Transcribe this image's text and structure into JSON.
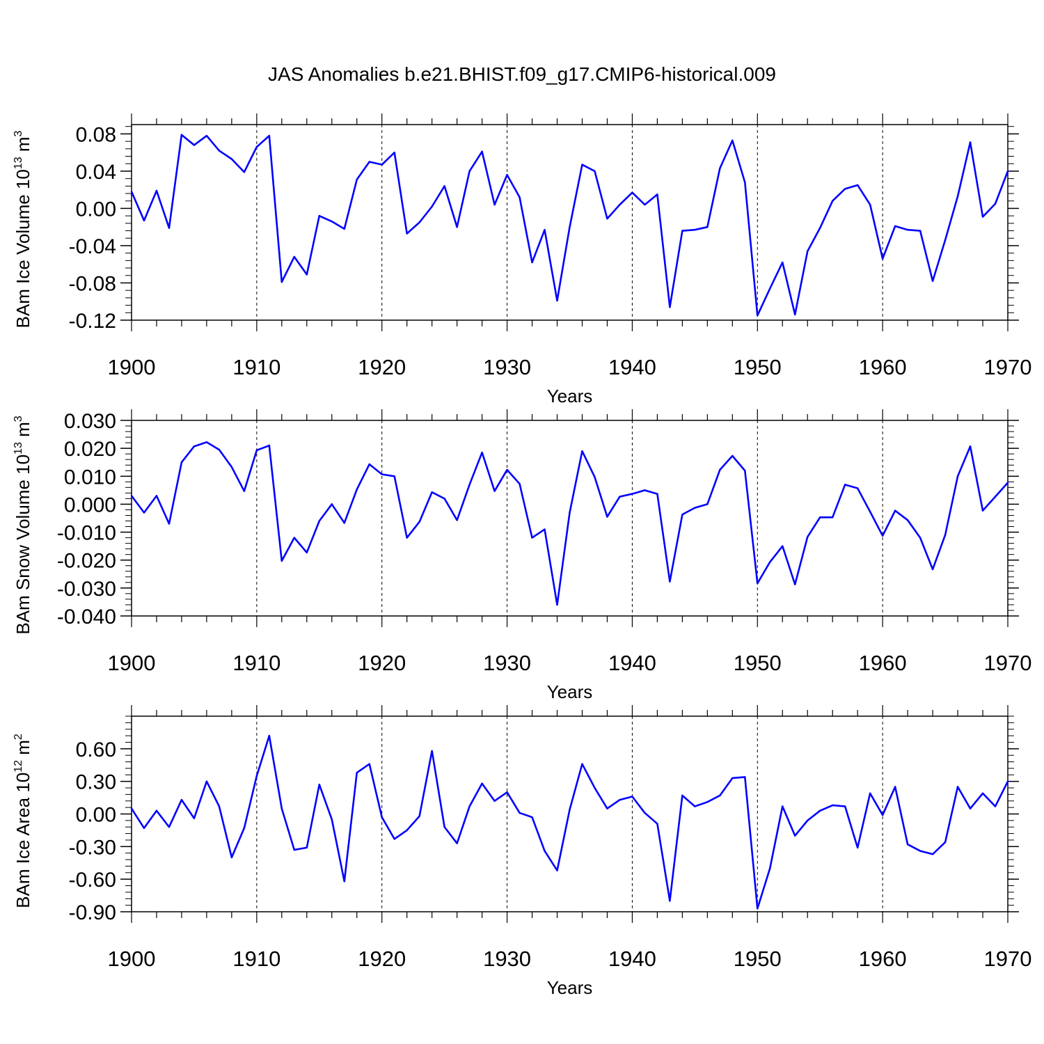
{
  "title": "JAS Anomalies b.e21.BHIST.f09_g17.CMIP6-historical.009",
  "colors": {
    "line": "#0000ff",
    "axis": "#000000",
    "grid": "#000000"
  },
  "chart_data": [
    {
      "type": "line",
      "name": "ice-volume",
      "ylabel_main": "BAm Ice Volume 10",
      "ylabel_exp": "13",
      "ylabel_unit": " m",
      "ylabel_unit_exp": "3",
      "xlabel": "Years",
      "xlim": [
        1900,
        1970
      ],
      "ylim": [
        -0.12,
        0.09
      ],
      "x_ticks": [
        "1900",
        "1910",
        "1920",
        "1930",
        "1940",
        "1950",
        "1960",
        "1970"
      ],
      "y_ticks": [
        -0.12,
        -0.08,
        -0.04,
        0.0,
        0.04,
        0.08
      ],
      "y_tick_labels": [
        "-0.12",
        "-0.08",
        "-0.04",
        "0.00",
        "0.04",
        "0.08"
      ],
      "y_minor_step": 0.008,
      "x": [
        1900,
        1901,
        1902,
        1903,
        1904,
        1905,
        1906,
        1907,
        1908,
        1909,
        1910,
        1911,
        1912,
        1913,
        1914,
        1915,
        1916,
        1917,
        1918,
        1919,
        1920,
        1921,
        1922,
        1923,
        1924,
        1925,
        1926,
        1927,
        1928,
        1929,
        1930,
        1931,
        1932,
        1933,
        1934,
        1935,
        1936,
        1937,
        1938,
        1939,
        1940,
        1941,
        1942,
        1943,
        1944,
        1945,
        1946,
        1947,
        1948,
        1949,
        1950,
        1951,
        1952,
        1953,
        1954,
        1955,
        1956,
        1957,
        1958,
        1959,
        1960,
        1961,
        1962,
        1963,
        1964,
        1965,
        1966,
        1967,
        1968,
        1969,
        1970
      ],
      "values": [
        0.018,
        -0.013,
        0.019,
        -0.021,
        0.079,
        0.068,
        0.078,
        0.062,
        0.053,
        0.039,
        0.066,
        0.078,
        -0.079,
        -0.052,
        -0.071,
        -0.008,
        -0.014,
        -0.022,
        0.031,
        0.05,
        0.047,
        0.06,
        -0.027,
        -0.015,
        0.002,
        0.024,
        -0.02,
        0.04,
        0.061,
        0.004,
        0.036,
        0.012,
        -0.058,
        -0.023,
        -0.099,
        -0.02,
        0.047,
        0.04,
        -0.011,
        0.004,
        0.017,
        0.004,
        0.015,
        -0.106,
        -0.024,
        -0.023,
        -0.02,
        0.043,
        0.073,
        0.028,
        -0.115,
        -0.086,
        -0.058,
        -0.114,
        -0.046,
        -0.021,
        0.008,
        0.021,
        0.025,
        0.004,
        -0.054,
        -0.019,
        -0.023,
        -0.024,
        -0.078,
        -0.034,
        0.013,
        0.071,
        -0.009,
        0.005,
        0.04
      ]
    },
    {
      "type": "line",
      "name": "snow-volume",
      "ylabel_main": "BAm Snow Volume 10",
      "ylabel_exp": "13",
      "ylabel_unit": " m",
      "ylabel_unit_exp": "3",
      "xlabel": "Years",
      "xlim": [
        1900,
        1970
      ],
      "ylim": [
        -0.04,
        0.03
      ],
      "x_ticks": [
        "1900",
        "1910",
        "1920",
        "1930",
        "1940",
        "1950",
        "1960",
        "1970"
      ],
      "y_ticks": [
        -0.04,
        -0.03,
        -0.02,
        -0.01,
        0.0,
        0.01,
        0.02,
        0.03
      ],
      "y_tick_labels": [
        "-0.040",
        "-0.030",
        "-0.020",
        "-0.010",
        "0.000",
        "0.010",
        "0.020",
        "0.030"
      ],
      "y_minor_step": 0.002,
      "x": [
        1900,
        1901,
        1902,
        1903,
        1904,
        1905,
        1906,
        1907,
        1908,
        1909,
        1910,
        1911,
        1912,
        1913,
        1914,
        1915,
        1916,
        1917,
        1918,
        1919,
        1920,
        1921,
        1922,
        1923,
        1924,
        1925,
        1926,
        1927,
        1928,
        1929,
        1930,
        1931,
        1932,
        1933,
        1934,
        1935,
        1936,
        1937,
        1938,
        1939,
        1940,
        1941,
        1942,
        1943,
        1944,
        1945,
        1946,
        1947,
        1948,
        1949,
        1950,
        1951,
        1952,
        1953,
        1954,
        1955,
        1956,
        1957,
        1958,
        1959,
        1960,
        1961,
        1962,
        1963,
        1964,
        1965,
        1966,
        1967,
        1968,
        1969,
        1970
      ],
      "values": [
        0.003,
        -0.003,
        0.003,
        -0.007,
        0.015,
        0.0207,
        0.0222,
        0.0195,
        0.0133,
        0.0047,
        0.0193,
        0.021,
        -0.0203,
        -0.012,
        -0.0173,
        -0.006,
        0.0,
        -0.0067,
        0.0053,
        0.0143,
        0.0107,
        0.01,
        -0.012,
        -0.0063,
        0.0043,
        0.002,
        -0.0057,
        0.007,
        0.0185,
        0.0047,
        0.0123,
        0.0073,
        -0.012,
        -0.009,
        -0.036,
        -0.003,
        0.019,
        0.0097,
        -0.0045,
        0.0027,
        0.0037,
        0.005,
        0.0037,
        -0.0277,
        -0.0037,
        -0.0013,
        0.0,
        0.0123,
        0.0173,
        0.012,
        -0.0283,
        -0.0207,
        -0.015,
        -0.0287,
        -0.0117,
        -0.0047,
        -0.0047,
        0.007,
        0.0057,
        -0.0027,
        -0.0113,
        -0.0023,
        -0.0057,
        -0.012,
        -0.0233,
        -0.011,
        0.01,
        0.0207,
        -0.0023,
        0.0027,
        0.0077
      ]
    },
    {
      "type": "line",
      "name": "ice-area",
      "ylabel_main": "BAm Ice Area 10",
      "ylabel_exp": "12",
      "ylabel_unit": " m",
      "ylabel_unit_exp": "2",
      "xlabel": "Years",
      "xlim": [
        1900,
        1970
      ],
      "ylim": [
        -0.9,
        0.9
      ],
      "x_ticks": [
        "1900",
        "1910",
        "1920",
        "1930",
        "1940",
        "1950",
        "1960",
        "1970"
      ],
      "y_ticks": [
        -0.9,
        -0.6,
        -0.3,
        0.0,
        0.3,
        0.6
      ],
      "y_tick_labels": [
        "-0.90",
        "-0.60",
        "-0.30",
        "0.00",
        "0.30",
        "0.60"
      ],
      "y_minor_step": 0.06,
      "x": [
        1900,
        1901,
        1902,
        1903,
        1904,
        1905,
        1906,
        1907,
        1908,
        1909,
        1910,
        1911,
        1912,
        1913,
        1914,
        1915,
        1916,
        1917,
        1918,
        1919,
        1920,
        1921,
        1922,
        1923,
        1924,
        1925,
        1926,
        1927,
        1928,
        1929,
        1930,
        1931,
        1932,
        1933,
        1934,
        1935,
        1936,
        1937,
        1938,
        1939,
        1940,
        1941,
        1942,
        1943,
        1944,
        1945,
        1946,
        1947,
        1948,
        1949,
        1950,
        1951,
        1952,
        1953,
        1954,
        1955,
        1956,
        1957,
        1958,
        1959,
        1960,
        1961,
        1962,
        1963,
        1964,
        1965,
        1966,
        1967,
        1968,
        1969,
        1970
      ],
      "values": [
        0.05,
        -0.13,
        0.03,
        -0.12,
        0.13,
        -0.04,
        0.3,
        0.07,
        -0.4,
        -0.13,
        0.35,
        0.72,
        0.05,
        -0.33,
        -0.31,
        0.27,
        -0.05,
        -0.62,
        0.38,
        0.46,
        -0.03,
        -0.23,
        -0.15,
        -0.02,
        0.58,
        -0.12,
        -0.27,
        0.07,
        0.28,
        0.12,
        0.2,
        0.01,
        -0.03,
        -0.34,
        -0.52,
        0.04,
        0.46,
        0.24,
        0.05,
        0.13,
        0.16,
        0.01,
        -0.09,
        -0.8,
        0.17,
        0.07,
        0.11,
        0.17,
        0.33,
        0.34,
        -0.87,
        -0.5,
        0.07,
        -0.2,
        -0.06,
        0.03,
        0.08,
        0.07,
        -0.31,
        0.19,
        -0.01,
        0.25,
        -0.28,
        -0.34,
        -0.37,
        -0.26,
        0.25,
        0.05,
        0.19,
        0.07,
        0.3
      ]
    }
  ]
}
